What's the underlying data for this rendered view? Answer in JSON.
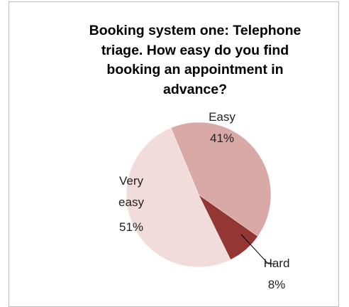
{
  "chart_data": {
    "type": "pie",
    "title": "Booking system one: Telephone triage. How easy do you find booking an appointment in advance?",
    "categories": [
      "Easy",
      "Hard",
      "Very easy"
    ],
    "values": [
      41,
      8,
      51
    ],
    "value_labels": [
      "41%",
      "8%",
      "51%"
    ],
    "colors": [
      "#d9a9a8",
      "#943634",
      "#f2dcdb"
    ]
  }
}
